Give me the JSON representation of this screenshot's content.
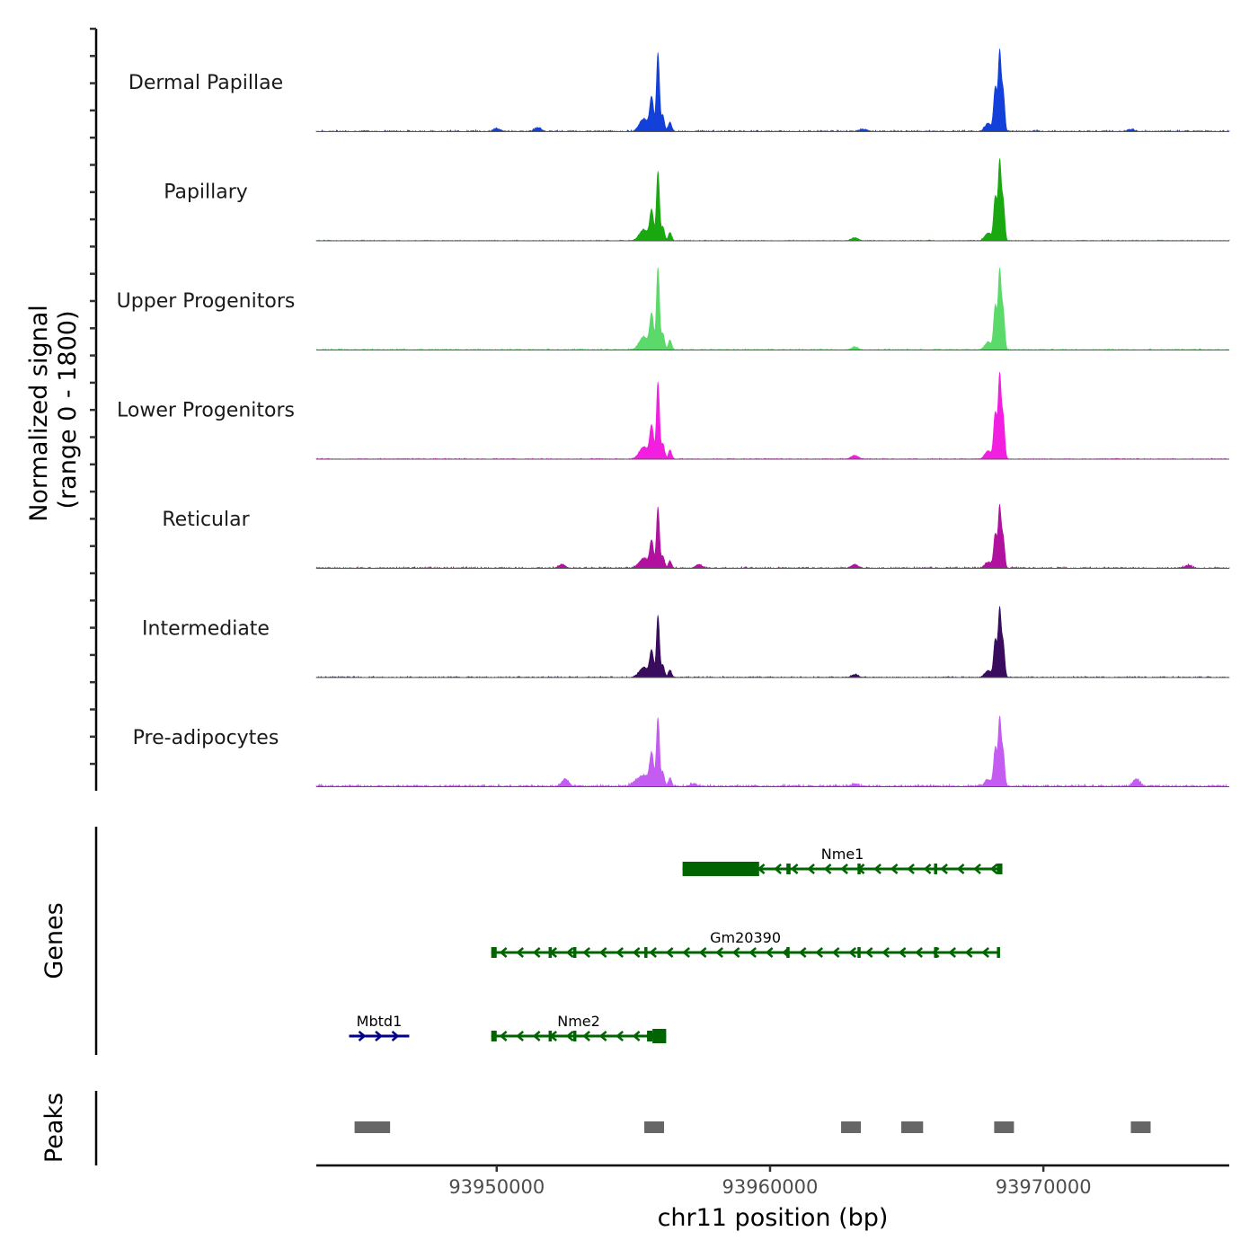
{
  "chart_data": {
    "type": "area",
    "title": "",
    "chromosome": "chr11",
    "xlabel": "chr11 position (bp)",
    "ylabel_line1": "Normalized signal",
    "ylabel_line2": "(range 0 - 1800)",
    "signal_range": [
      0,
      1800
    ],
    "xlim": [
      93943400,
      93976800
    ],
    "x_ticks": [
      {
        "value": 93950000,
        "label": "93950000"
      },
      {
        "value": 93960000,
        "label": "93960000"
      },
      {
        "value": 93970000,
        "label": "93970000"
      }
    ],
    "tracks": [
      {
        "name": "Dermal Papillae",
        "color": "#1240d8",
        "peak1": 0.86,
        "peak2": 0.86,
        "noise": 0.02,
        "extras": [
          [
            93951500,
            0.04
          ],
          [
            93950000,
            0.03
          ],
          [
            93963400,
            0.025
          ],
          [
            93973200,
            0.02
          ]
        ],
        "spread": 1.0
      },
      {
        "name": "Papillary",
        "color": "#1aa811",
        "peak1": 0.76,
        "peak2": 0.86,
        "noise": 0.012,
        "extras": [
          [
            93963100,
            0.03
          ]
        ],
        "spread": 1.0
      },
      {
        "name": "Upper Progenitors",
        "color": "#5bd96a",
        "peak1": 0.9,
        "peak2": 0.86,
        "noise": 0.015,
        "extras": [
          [
            93963100,
            0.03
          ]
        ],
        "spread": 1.0
      },
      {
        "name": "Lower Progenitors",
        "color": "#f21ee0",
        "peak1": 0.84,
        "peak2": 0.91,
        "noise": 0.012,
        "extras": [
          [
            93963100,
            0.04
          ]
        ],
        "spread": 1.0
      },
      {
        "name": "Reticular",
        "color": "#b0129f",
        "peak1": 0.66,
        "peak2": 0.66,
        "noise": 0.02,
        "extras": [
          [
            93952400,
            0.04
          ],
          [
            93963100,
            0.04
          ],
          [
            93957400,
            0.04
          ],
          [
            93975300,
            0.03
          ]
        ],
        "spread": 1.1
      },
      {
        "name": "Intermediate",
        "color": "#3a0c5e",
        "peak1": 0.68,
        "peak2": 0.74,
        "noise": 0.015,
        "extras": [
          [
            93963100,
            0.03
          ]
        ],
        "spread": 1.0
      },
      {
        "name": "Pre-adipocytes",
        "color": "#c45cf2",
        "peak1": 0.74,
        "peak2": 0.74,
        "noise": 0.03,
        "extras": [
          [
            93952500,
            0.08
          ],
          [
            93973400,
            0.08
          ],
          [
            93957200,
            0.03
          ],
          [
            93963100,
            0.03
          ]
        ],
        "spread": 1.6
      }
    ],
    "genes_axis_label": "Genes",
    "genes": [
      {
        "name": "Nme1",
        "start": 93956800,
        "end": 93968500,
        "strand": "-",
        "color": "#006400",
        "row": 0,
        "exons": [
          [
            93956800,
            93959600
          ],
          [
            93960600,
            93960750
          ],
          [
            93963200,
            93963300
          ],
          [
            93966000,
            93966100
          ],
          [
            93968300,
            93968500
          ]
        ]
      },
      {
        "name": "Gm20390",
        "start": 93949800,
        "end": 93968400,
        "strand": "-",
        "color": "#006400",
        "row": 1,
        "exons": [
          [
            93949800,
            93950000
          ],
          [
            93951900,
            93952000
          ],
          [
            93952800,
            93952900
          ],
          [
            93955400,
            93955500
          ],
          [
            93960600,
            93960700
          ],
          [
            93963200,
            93963300
          ],
          [
            93966000,
            93966100
          ],
          [
            93968300,
            93968400
          ]
        ]
      },
      {
        "name": "Mbtd1",
        "start": 93944600,
        "end": 93946800,
        "strand": "+",
        "color": "#00008b",
        "row": 2,
        "exons": []
      },
      {
        "name": "Nme2",
        "start": 93949800,
        "end": 93956200,
        "strand": "-",
        "color": "#006400",
        "row": 2,
        "exons": [
          [
            93949800,
            93950000
          ],
          [
            93951900,
            93952000
          ],
          [
            93952800,
            93952900
          ],
          [
            93955500,
            93955700
          ],
          [
            93955700,
            93956200
          ]
        ]
      }
    ],
    "peaks_axis_label": "Peaks",
    "peak_color": "#666666",
    "peaks": [
      [
        93944800,
        93945100
      ],
      [
        93945200,
        93946100
      ],
      [
        93955400,
        93956000
      ],
      [
        93962600,
        93963300
      ],
      [
        93964800,
        93965600
      ],
      [
        93968200,
        93968700
      ],
      [
        93973200,
        93973400
      ]
    ]
  }
}
